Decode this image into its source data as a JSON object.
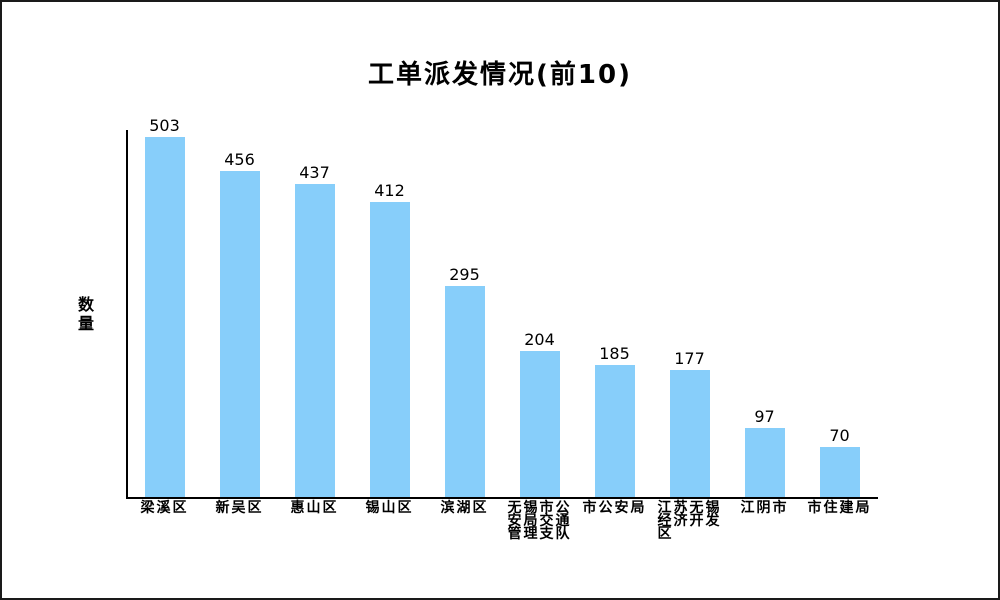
{
  "frame": {
    "background": "#ffffff",
    "border_color": "#1a1a1a"
  },
  "chart_data": {
    "type": "bar",
    "title": "工单派发情况(前10)",
    "xlabel": "",
    "ylabel": "数量",
    "categories": [
      "梁溪区",
      "新吴区",
      "惠山区",
      "锡山区",
      "滨湖区",
      "无锡市公\n安局交通\n管理支队",
      "市公安局",
      "江苏无锡\n经济开发\n区",
      "江阴市",
      "市住建局"
    ],
    "values": [
      503,
      456,
      437,
      412,
      295,
      204,
      185,
      177,
      97,
      70
    ],
    "value_labels": [
      "503",
      "456",
      "437",
      "412",
      "295",
      "204",
      "185",
      "177",
      "97",
      "70"
    ],
    "bar_color": "#87CEFA",
    "text_color": "#000000",
    "axis_color": "#000000",
    "ylim": [
      0,
      513
    ],
    "grid": false,
    "legend": false,
    "value_labels_shown": true
  }
}
